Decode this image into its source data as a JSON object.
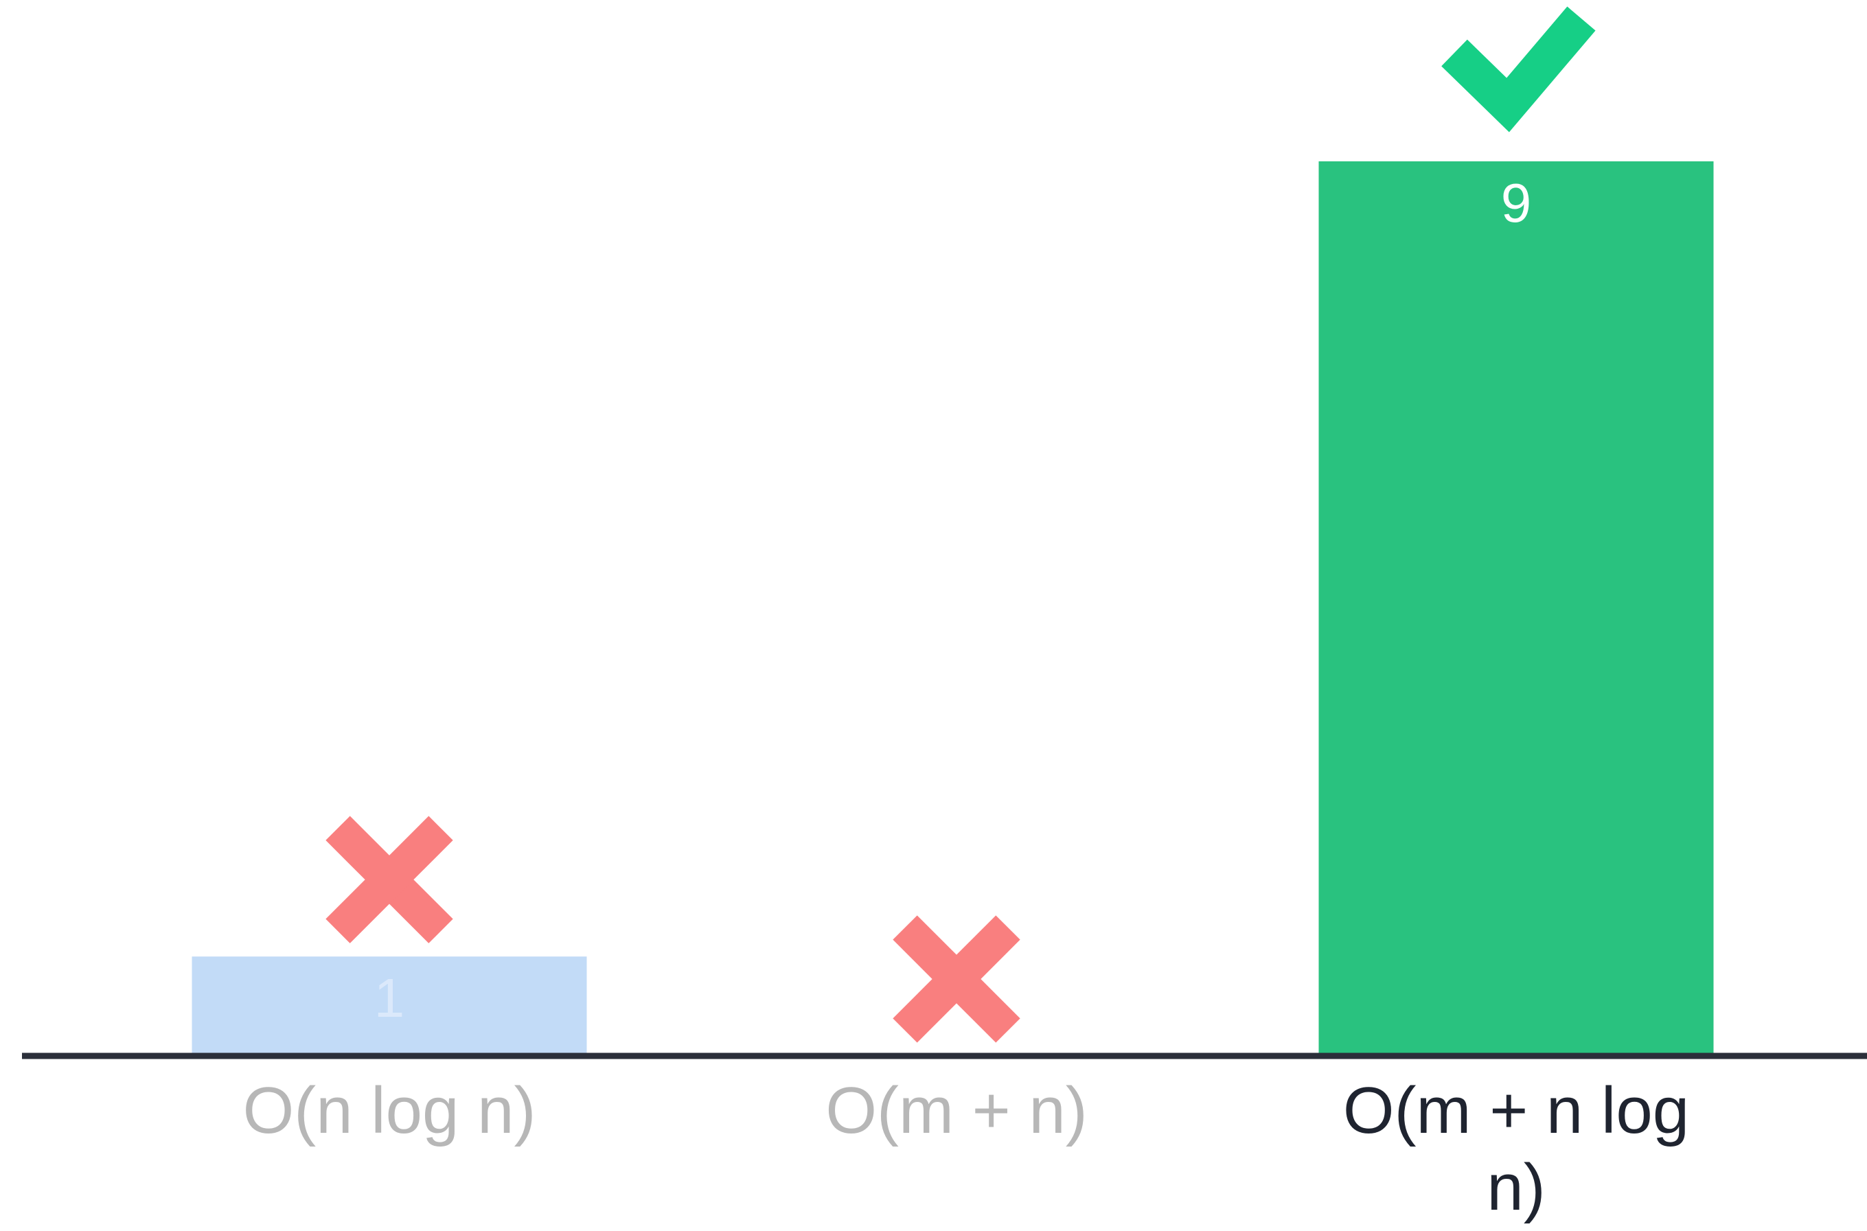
{
  "chart_data": {
    "type": "bar",
    "categories": [
      "O(n log n)",
      "O(m + n)",
      "O(m + n log n)"
    ],
    "values": [
      1,
      0,
      9
    ],
    "value_labels": [
      "1",
      "",
      "9"
    ],
    "marks": [
      "cross",
      "cross",
      "check"
    ],
    "category_states": [
      "dimmed",
      "dimmed",
      "active"
    ],
    "ylim": [
      0,
      9
    ],
    "grid": false,
    "title": "",
    "xlabel": "",
    "ylabel": ""
  },
  "colors": {
    "background": "#ffffff",
    "axis": "#2b2f3a",
    "bar_correct": "#29c27f",
    "bar_wrong": "#c2dbf7",
    "cross": "#f97f7f",
    "check": "#16cf86",
    "label_active": "#1f2430",
    "label_dimmed": "#b7b7b7",
    "value_on_green": "#ffffff",
    "value_on_blue": "#dbe9fb"
  }
}
